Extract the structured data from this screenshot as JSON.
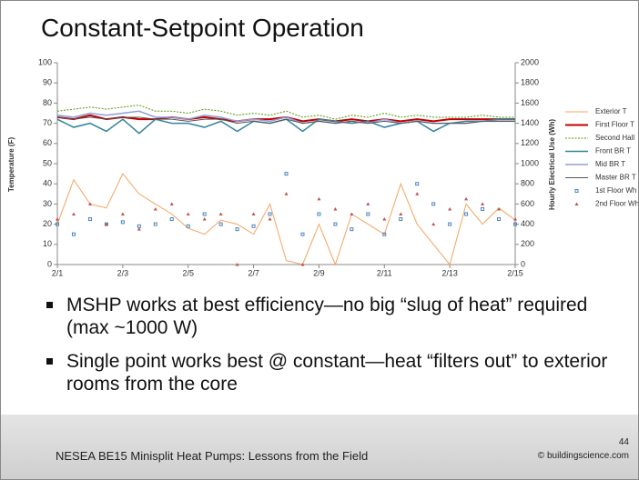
{
  "slide": {
    "title": "Constant-Setpoint Operation",
    "bullets": [
      "MSHP works at best efficiency—no big “slug of heat” required (max ~1000 W)",
      "Single point works best @ constant—heat “filters out” to exterior rooms from the core"
    ],
    "footer": "NESEA BE15 Minisplit Heat Pumps: Lessons from the Field",
    "page": "44",
    "copyright": "© buildingscience.com"
  },
  "chart_data": {
    "type": "line",
    "ylabel": "Temperature (F)",
    "y2label": "Hourly Electrical Use (Wh)",
    "xlim": [
      0,
      14
    ],
    "xticks": [
      {
        "value": 0,
        "label": "2/1"
      },
      {
        "value": 2,
        "label": "2/3"
      },
      {
        "value": 4,
        "label": "2/5"
      },
      {
        "value": 6,
        "label": "2/7"
      },
      {
        "value": 8,
        "label": "2/9"
      },
      {
        "value": 10,
        "label": "2/11"
      },
      {
        "value": 12,
        "label": "2/13"
      },
      {
        "value": 14,
        "label": "2/15"
      }
    ],
    "ylim": [
      0,
      100
    ],
    "yticks": [
      0,
      10,
      20,
      30,
      40,
      50,
      60,
      70,
      80,
      90,
      100
    ],
    "y2lim": [
      0,
      2000
    ],
    "y2ticks": [
      0,
      200,
      400,
      600,
      800,
      1000,
      1200,
      1400,
      1600,
      1800,
      2000
    ],
    "x": [
      0,
      0.5,
      1,
      1.5,
      2,
      2.5,
      3,
      3.5,
      4,
      4.5,
      5,
      5.5,
      6,
      6.5,
      7,
      7.5,
      8,
      8.5,
      9,
      9.5,
      10,
      10.5,
      11,
      11.5,
      12,
      12.5,
      13,
      13.5,
      14
    ],
    "series": [
      {
        "name": "Exterior T",
        "color": "#f4a460",
        "width": 1,
        "values": [
          20,
          42,
          30,
          28,
          45,
          35,
          30,
          25,
          18,
          15,
          22,
          20,
          15,
          30,
          2,
          0,
          20,
          0,
          25,
          20,
          15,
          40,
          20,
          10,
          0,
          30,
          20,
          28,
          22
        ]
      },
      {
        "name": "First Floor T",
        "color": "#c00000",
        "width": 2,
        "values": [
          73,
          72,
          74,
          72,
          73,
          72,
          72,
          73,
          72,
          73,
          72,
          71,
          72,
          72,
          73,
          71,
          72,
          71,
          72,
          71,
          72,
          71,
          72,
          71,
          72,
          72,
          72,
          72,
          72
        ]
      },
      {
        "name": "Second Hall",
        "color": "#4e9a06",
        "width": 1,
        "dash": true,
        "values": [
          76,
          77,
          78,
          77,
          78,
          79,
          76,
          76,
          75,
          77,
          76,
          74,
          75,
          74,
          76,
          73,
          74,
          72,
          74,
          73,
          75,
          73,
          74,
          73,
          73,
          73,
          74,
          73,
          73
        ]
      },
      {
        "name": "Front BR T",
        "color": "#31859c",
        "width": 1.5,
        "values": [
          72,
          68,
          70,
          66,
          72,
          65,
          72,
          70,
          70,
          68,
          71,
          66,
          71,
          70,
          72,
          66,
          72,
          71,
          70,
          71,
          68,
          70,
          71,
          66,
          70,
          71,
          71,
          72,
          72
        ]
      },
      {
        "name": "Mid BR T",
        "color": "#8e9fd6",
        "width": 1.5,
        "values": [
          74,
          73,
          75,
          74,
          75,
          76,
          73,
          73,
          72,
          74,
          73,
          71,
          72,
          71,
          73,
          70,
          71,
          70,
          71,
          70,
          72,
          70,
          71,
          70,
          70,
          70,
          71,
          71,
          71
        ]
      },
      {
        "name": "Master BR T",
        "color": "#555555",
        "width": 1,
        "values": [
          73,
          72,
          73,
          72,
          73,
          73,
          72,
          72,
          71,
          72,
          72,
          70,
          71,
          70,
          72,
          70,
          71,
          70,
          71,
          70,
          71,
          70,
          71,
          70,
          70,
          70,
          71,
          71,
          71
        ]
      },
      {
        "name": "1st Floor Wh",
        "type": "scatter",
        "axis": "y2",
        "color": "#4f81bd",
        "values": [
          400,
          300,
          450,
          400,
          420,
          380,
          400,
          450,
          380,
          500,
          400,
          350,
          380,
          500,
          900,
          300,
          500,
          400,
          350,
          500,
          300,
          450,
          800,
          600,
          400,
          500,
          550,
          450,
          400
        ]
      },
      {
        "name": "2nd Floor Wh",
        "type": "scatter",
        "axis": "y2",
        "color": "#c0504d",
        "values": [
          450,
          500,
          600,
          400,
          500,
          350,
          550,
          600,
          500,
          450,
          500,
          0,
          500,
          450,
          700,
          0,
          650,
          550,
          500,
          600,
          450,
          500,
          700,
          400,
          550,
          650,
          600,
          550,
          450
        ]
      }
    ]
  }
}
